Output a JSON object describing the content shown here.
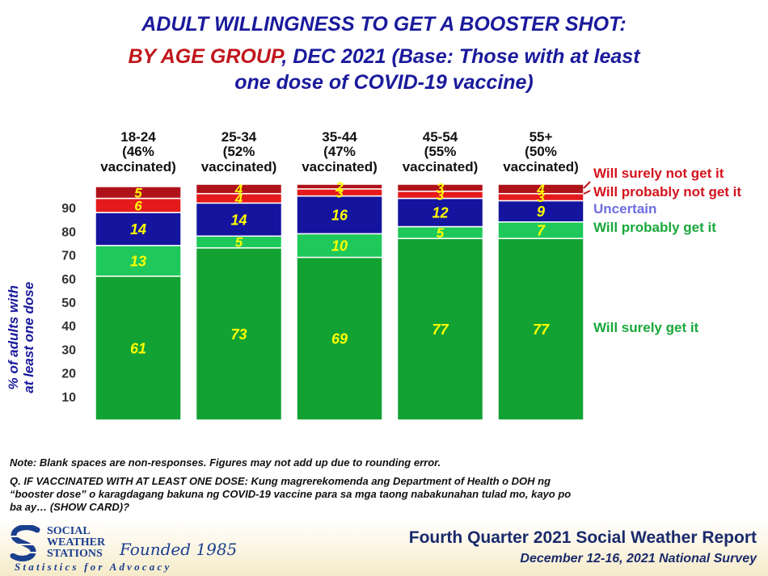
{
  "title": {
    "line1": "ADULT WILLINGNESS TO GET A BOOSTER SHOT:",
    "line2_red": "BY AGE GROUP",
    "line2_blue": ", DEC 2021 (Base: Those with at least",
    "line3": "one dose of COVID-19 vaccine)"
  },
  "chart_data": {
    "type": "bar",
    "stacked": true,
    "title": "ADULT WILLINGNESS TO GET A BOOSTER SHOT: BY AGE GROUP, DEC 2021 (Base: Those with at least one dose of COVID-19 vaccine)",
    "ylabel": "% of adults with at least one dose",
    "ylim": [
      0,
      100
    ],
    "yticks": [
      10,
      20,
      30,
      40,
      50,
      60,
      70,
      80,
      90
    ],
    "categories": [
      {
        "name": "18-24",
        "sub1": "(46%",
        "sub2": "vaccinated)"
      },
      {
        "name": "25-34",
        "sub1": "(52%",
        "sub2": "vaccinated)"
      },
      {
        "name": "35-44",
        "sub1": "(47%",
        "sub2": "vaccinated)"
      },
      {
        "name": "45-54",
        "sub1": "(55%",
        "sub2": "vaccinated)"
      },
      {
        "name": "55+",
        "sub1": "(50%",
        "sub2": "vaccinated)"
      }
    ],
    "series": [
      {
        "name": "Will surely get it",
        "color": "#12a233",
        "label_color": "#ffff00",
        "values": [
          61,
          73,
          69,
          77,
          77
        ]
      },
      {
        "name": "Will probably get it",
        "color": "#1fc85a",
        "label_color": "#ffff00",
        "values": [
          13,
          5,
          10,
          5,
          7
        ]
      },
      {
        "name": "Uncertain",
        "color": "#14149e",
        "label_color": "#ffff00",
        "values": [
          14,
          14,
          16,
          12,
          9
        ]
      },
      {
        "name": "Will probably not get it",
        "color": "#e41a1c",
        "label_color": "#ffff00",
        "values": [
          6,
          4,
          3,
          3,
          3
        ]
      },
      {
        "name": "Will surely not get it",
        "color": "#b0121a",
        "label_color": "#ffff00",
        "values": [
          5,
          4,
          2,
          3,
          4
        ]
      }
    ],
    "legend": [
      {
        "label": "Will surely not get it",
        "color": "#d4141c"
      },
      {
        "label": "Will probably not get it",
        "color": "#d4141c"
      },
      {
        "label": "Uncertain",
        "color": "#6e6ee0"
      },
      {
        "label": "Will probably get it",
        "color": "#18a83a"
      },
      {
        "label": "Will surely get it",
        "color": "#18a83a"
      }
    ]
  },
  "notes": {
    "note": "Note: Blank spaces are non-responses. Figures may not add up due to rounding error.",
    "q1": "Q. IF VACCINATED WITH AT LEAST ONE DOSE: Kung magrerekomenda ang Department of Health o DOH ng",
    "q2": "“booster dose” o karagdagang bakuna ng COVID-19 vaccine para sa mga taong nabakunahan tulad mo, kayo po",
    "q3": "ba ay… (SHOW CARD)?"
  },
  "footer": {
    "org_line1": "SOCIAL",
    "org_line2": "WEATHER",
    "org_line3": "STATIONS",
    "founded": "Founded 1985",
    "tagline": "Statistics for Advocacy",
    "report_title": "Fourth Quarter 2021 Social Weather Report",
    "report_sub": "December 12-16, 2021 National Survey"
  },
  "colors": {
    "accent_blue": "#1a1a9c",
    "accent_red": "#c0161c"
  }
}
